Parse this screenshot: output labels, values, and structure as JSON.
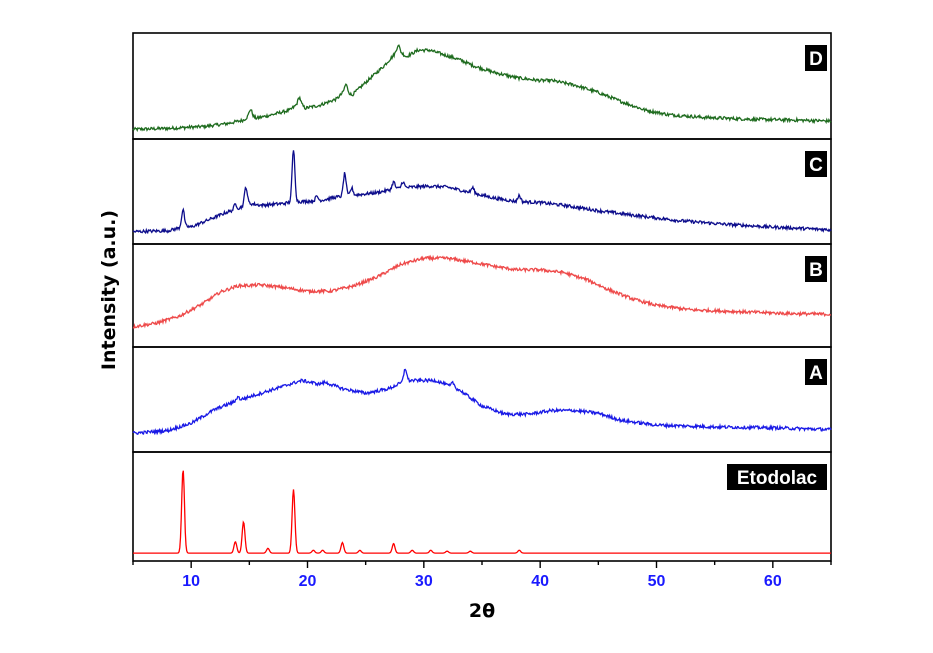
{
  "chart_data": {
    "type": "line",
    "xlabel": "2θ",
    "ylabel": "Intensity (a.u.)",
    "xlim": [
      5,
      65
    ],
    "x_ticks": [
      10,
      20,
      30,
      40,
      50,
      60
    ],
    "tick_color": "#1a1aff",
    "grid": false,
    "layout": "stacked panels (top to bottom: D, C, B, A, Etodolac)",
    "series": [
      {
        "name": "D",
        "color": "#1e6b1e",
        "ylim": [
          0,
          1
        ],
        "points": [
          [
            5,
            0.04
          ],
          [
            8,
            0.05
          ],
          [
            11,
            0.07
          ],
          [
            13,
            0.1
          ],
          [
            14.5,
            0.14
          ],
          [
            15.1,
            0.2
          ],
          [
            15.6,
            0.16
          ],
          [
            17,
            0.2
          ],
          [
            18.5,
            0.25
          ],
          [
            19.3,
            0.33
          ],
          [
            19.8,
            0.27
          ],
          [
            21,
            0.3
          ],
          [
            22.5,
            0.37
          ],
          [
            23.3,
            0.47
          ],
          [
            23.8,
            0.41
          ],
          [
            25,
            0.55
          ],
          [
            26.5,
            0.72
          ],
          [
            27.8,
            0.9
          ],
          [
            28.5,
            0.83
          ],
          [
            29.5,
            0.9
          ],
          [
            30.5,
            0.9
          ],
          [
            31.5,
            0.86
          ],
          [
            33,
            0.8
          ],
          [
            34.5,
            0.72
          ],
          [
            36,
            0.66
          ],
          [
            38,
            0.6
          ],
          [
            40,
            0.57
          ],
          [
            41,
            0.57
          ],
          [
            43,
            0.52
          ],
          [
            45,
            0.44
          ],
          [
            47,
            0.34
          ],
          [
            49,
            0.25
          ],
          [
            51,
            0.2
          ],
          [
            54,
            0.17
          ],
          [
            58,
            0.15
          ],
          [
            62,
            0.14
          ],
          [
            65,
            0.13
          ]
        ],
        "peaks": [
          [
            15.1,
            0.06
          ],
          [
            19.3,
            0.06
          ],
          [
            23.3,
            0.06
          ],
          [
            27.8,
            0.06
          ]
        ]
      },
      {
        "name": "C",
        "color": "#0d0d8c",
        "ylim": [
          0,
          1
        ],
        "points": [
          [
            5,
            0.07
          ],
          [
            8,
            0.08
          ],
          [
            9,
            0.11
          ],
          [
            9.3,
            0.2
          ],
          [
            9.5,
            0.13
          ],
          [
            10,
            0.12
          ],
          [
            11.5,
            0.2
          ],
          [
            13,
            0.28
          ],
          [
            14,
            0.32
          ],
          [
            15,
            0.38
          ],
          [
            16,
            0.36
          ],
          [
            17,
            0.37
          ],
          [
            18,
            0.38
          ],
          [
            19,
            0.4
          ],
          [
            19.5,
            0.4
          ],
          [
            21,
            0.41
          ],
          [
            22.5,
            0.45
          ],
          [
            24,
            0.47
          ],
          [
            26,
            0.5
          ],
          [
            27.5,
            0.54
          ],
          [
            29,
            0.56
          ],
          [
            30.5,
            0.57
          ],
          [
            32,
            0.56
          ],
          [
            34,
            0.5
          ],
          [
            36,
            0.44
          ],
          [
            38,
            0.4
          ],
          [
            40,
            0.39
          ],
          [
            42,
            0.36
          ],
          [
            45,
            0.3
          ],
          [
            48,
            0.25
          ],
          [
            52,
            0.19
          ],
          [
            56,
            0.15
          ],
          [
            60,
            0.12
          ],
          [
            65,
            0.09
          ]
        ],
        "peaks": [
          [
            9.3,
            0.12
          ],
          [
            13.8,
            0.06
          ],
          [
            14.7,
            0.2
          ],
          [
            18.8,
            0.57
          ],
          [
            20.8,
            0.05
          ],
          [
            23.2,
            0.25
          ],
          [
            23.8,
            0.08
          ],
          [
            27.4,
            0.08
          ],
          [
            28.2,
            0.07
          ],
          [
            34.2,
            0.06
          ],
          [
            38.2,
            0.07
          ]
        ]
      },
      {
        "name": "B",
        "color": "#ee4a4a",
        "ylim": [
          0,
          1
        ],
        "points": [
          [
            5,
            0.16
          ],
          [
            7,
            0.2
          ],
          [
            9,
            0.28
          ],
          [
            11,
            0.42
          ],
          [
            12.5,
            0.55
          ],
          [
            14,
            0.62
          ],
          [
            16,
            0.63
          ],
          [
            18,
            0.6
          ],
          [
            20,
            0.56
          ],
          [
            22,
            0.56
          ],
          [
            24,
            0.62
          ],
          [
            26,
            0.72
          ],
          [
            28,
            0.86
          ],
          [
            30,
            0.93
          ],
          [
            32,
            0.93
          ],
          [
            34,
            0.89
          ],
          [
            36,
            0.84
          ],
          [
            38,
            0.8
          ],
          [
            40,
            0.8
          ],
          [
            42,
            0.77
          ],
          [
            44,
            0.69
          ],
          [
            46,
            0.57
          ],
          [
            48,
            0.47
          ],
          [
            50,
            0.4
          ],
          [
            53,
            0.35
          ],
          [
            57,
            0.33
          ],
          [
            61,
            0.31
          ],
          [
            65,
            0.3
          ]
        ],
        "peaks": []
      },
      {
        "name": "A",
        "color": "#1a1ae6",
        "ylim": [
          0,
          1
        ],
        "points": [
          [
            5,
            0.14
          ],
          [
            8,
            0.17
          ],
          [
            10,
            0.25
          ],
          [
            12,
            0.4
          ],
          [
            14,
            0.5
          ],
          [
            16,
            0.58
          ],
          [
            18,
            0.66
          ],
          [
            19.5,
            0.72
          ],
          [
            21,
            0.68
          ],
          [
            21.5,
            0.7
          ],
          [
            23,
            0.63
          ],
          [
            25,
            0.58
          ],
          [
            27,
            0.63
          ],
          [
            28.5,
            0.72
          ],
          [
            29.5,
            0.72
          ],
          [
            31,
            0.72
          ],
          [
            33,
            0.62
          ],
          [
            35,
            0.44
          ],
          [
            37,
            0.35
          ],
          [
            39,
            0.35
          ],
          [
            41,
            0.39
          ],
          [
            43,
            0.39
          ],
          [
            45,
            0.36
          ],
          [
            47,
            0.28
          ],
          [
            50,
            0.23
          ],
          [
            55,
            0.21
          ],
          [
            60,
            0.2
          ],
          [
            65,
            0.18
          ]
        ],
        "peaks": [
          [
            28.4,
            0.14
          ],
          [
            32.5,
            0.05
          ],
          [
            14,
            0.04
          ]
        ]
      },
      {
        "name": "Etodolac",
        "color": "#ff0000",
        "ylim": [
          0,
          1
        ],
        "points": [
          [
            5,
            0.02
          ],
          [
            65,
            0.02
          ]
        ],
        "peaks": [
          [
            9.3,
            0.88
          ],
          [
            13.8,
            0.12
          ],
          [
            14.5,
            0.33
          ],
          [
            16.6,
            0.05
          ],
          [
            18.8,
            0.67
          ],
          [
            20.5,
            0.03
          ],
          [
            21.3,
            0.03
          ],
          [
            23,
            0.11
          ],
          [
            24.5,
            0.03
          ],
          [
            27.4,
            0.1
          ],
          [
            29,
            0.03
          ],
          [
            30.6,
            0.03
          ],
          [
            32,
            0.02
          ],
          [
            34,
            0.02
          ],
          [
            38.2,
            0.03
          ]
        ]
      }
    ]
  }
}
